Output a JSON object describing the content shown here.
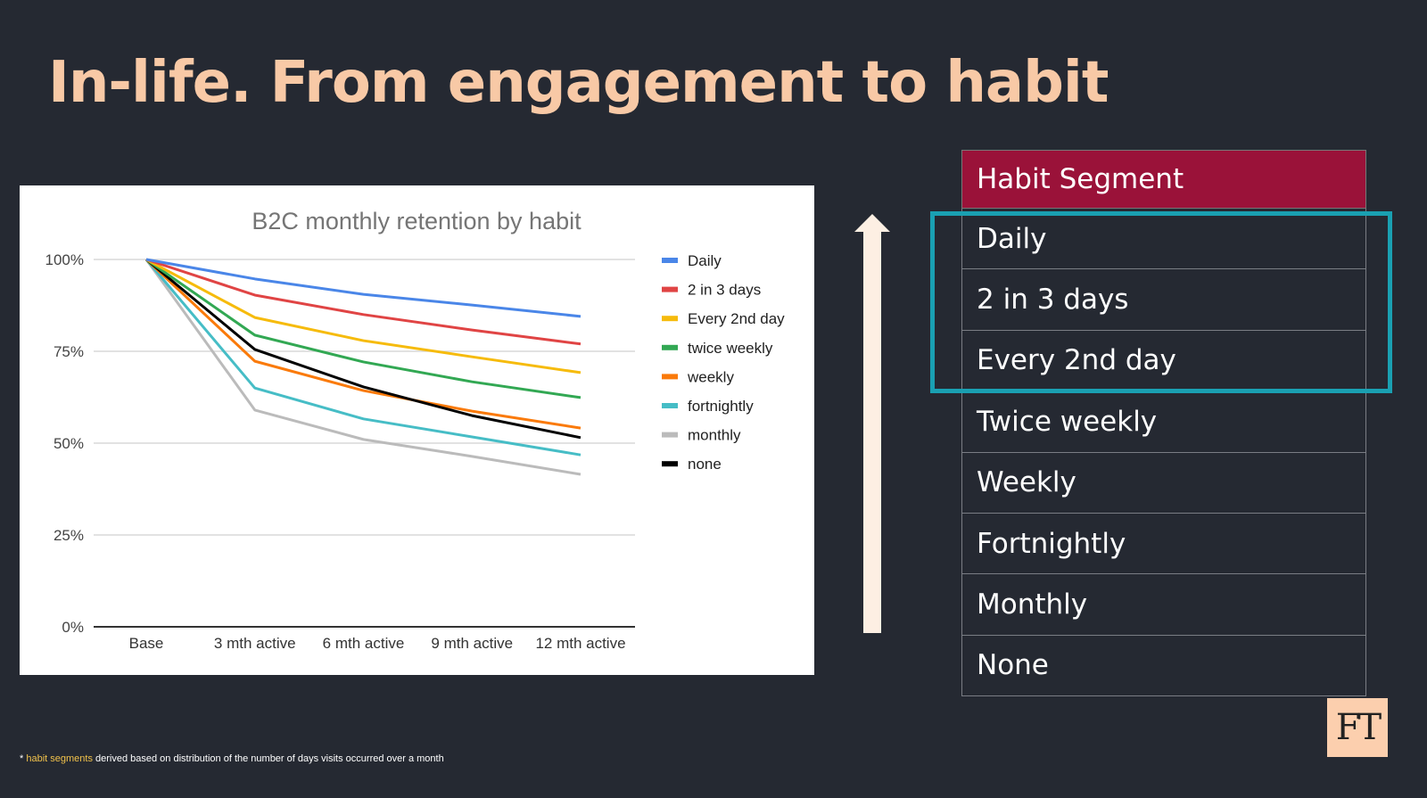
{
  "title": "In-life. From engagement to habit",
  "chart_data": {
    "type": "line",
    "title": "B2C monthly retention by habit",
    "categories": [
      "Base",
      "3 mth active",
      "6 mth active",
      "9 mth active",
      "12 mth active"
    ],
    "yticks": [
      "0%",
      "25%",
      "50%",
      "75%",
      "100%"
    ],
    "ylim": [
      0,
      100
    ],
    "grid": true,
    "legend": "right",
    "series": [
      {
        "name": "Daily",
        "color": "#4a86e8",
        "values": [
          100,
          94.7,
          90.5,
          87.6,
          84.5
        ]
      },
      {
        "name": "2 in 3 days",
        "color": "#e04444",
        "values": [
          100,
          90.3,
          85.0,
          80.8,
          77.0
        ]
      },
      {
        "name": "Every 2nd day",
        "color": "#f6bb0c",
        "values": [
          100,
          84.2,
          77.9,
          73.5,
          69.2
        ]
      },
      {
        "name": "twice weekly",
        "color": "#32a853",
        "values": [
          100,
          79.4,
          72.1,
          66.7,
          62.4
        ]
      },
      {
        "name": "weekly",
        "color": "#fa7a0a",
        "values": [
          100,
          72.3,
          64.3,
          58.7,
          54.1
        ]
      },
      {
        "name": "fortnightly",
        "color": "#46bdc6",
        "values": [
          100,
          65.0,
          56.6,
          51.7,
          46.8
        ]
      },
      {
        "name": "monthly",
        "color": "#bbbbbb",
        "values": [
          100,
          59.0,
          51.0,
          46.4,
          41.5
        ]
      },
      {
        "name": "none",
        "color": "#000000",
        "values": [
          100,
          75.5,
          65.3,
          57.5,
          51.5
        ]
      }
    ]
  },
  "table": {
    "header": "Habit Segment",
    "rows": [
      "Daily",
      "2 in 3  days",
      "Every 2nd day",
      "Twice weekly",
      "Weekly",
      "Fortnightly",
      "Monthly",
      "None"
    ]
  },
  "logo": "FT",
  "footnote": {
    "star": "*",
    "highlight": "habit segments",
    "rest": " derived based on distribution of the number of days visits occurred over a month"
  },
  "colors": {
    "background": "#252932",
    "title": "#f8c9a6",
    "header": "#9a1239",
    "highlight_box": "#1aa0b2"
  }
}
